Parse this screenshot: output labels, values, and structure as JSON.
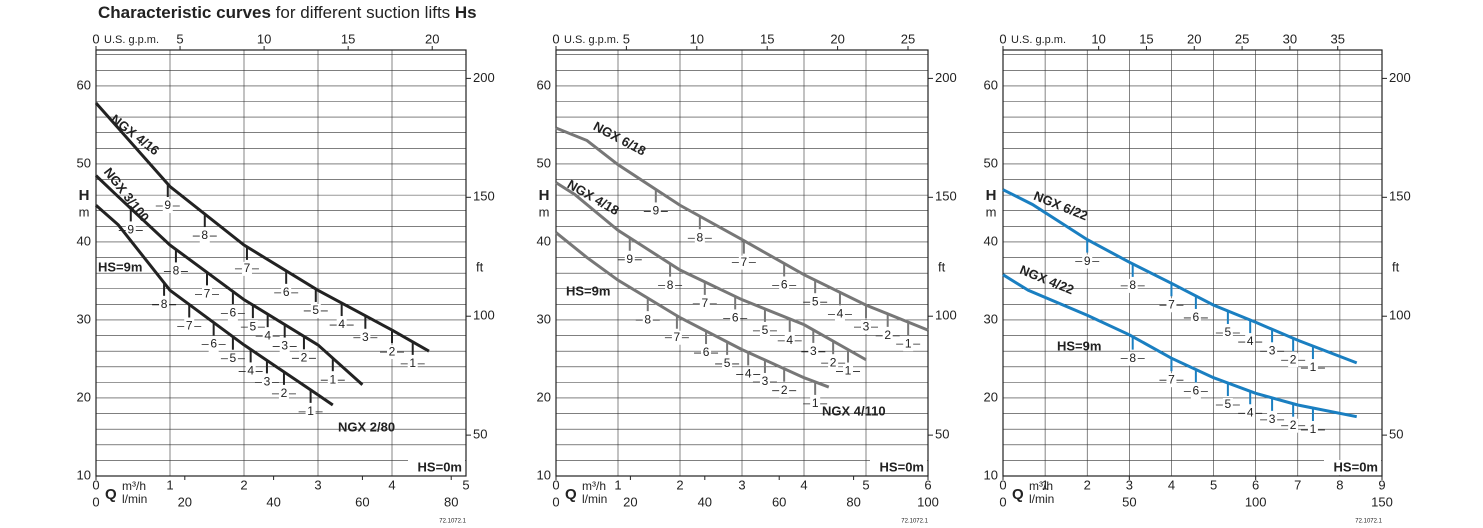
{
  "page_title": [
    "Characteristic curves",
    "for different suction lifts",
    "Hs"
  ],
  "chart_data": [
    {
      "type": "line",
      "color": "#222222",
      "xlim": [
        0,
        5
      ],
      "xticks": [
        0,
        1,
        2,
        3,
        4,
        5
      ],
      "x_unit": "m³/h",
      "lmin_lim": [
        0,
        83.33
      ],
      "lmin_ticks": [
        0,
        20,
        40,
        60,
        80
      ],
      "lmin_unit": "l/min",
      "gpm_lim": [
        0,
        22.01
      ],
      "gpm_ticks": [
        0,
        5,
        10,
        15,
        20
      ],
      "gpm_unit": "U.S. g.p.m.",
      "ylim": [
        10,
        64.6
      ],
      "yticks": [
        10,
        20,
        30,
        40,
        50,
        60
      ],
      "ygrid": [
        12,
        14,
        16,
        18,
        22,
        24,
        26,
        28,
        32,
        34,
        36,
        38,
        42,
        44,
        46,
        48,
        52,
        54,
        56,
        58,
        62,
        64
      ],
      "y_label": "H",
      "y_unit": "m",
      "y2lim": [
        32.81,
        211.94
      ],
      "y2ticks": [
        50,
        100,
        150,
        200
      ],
      "y2_unit": "ft",
      "x_label": "Q",
      "hs_max": "HS=9m",
      "hs_min": "HS=0m",
      "code": "72.1072.1",
      "series": [
        {
          "name": "NGX 4/16",
          "x": [
            0,
            0.3,
            1,
            2,
            3,
            4,
            4.5
          ],
          "values": [
            57.8,
            54.6,
            47.1,
            39.6,
            33.8,
            28.7,
            26
          ],
          "hs_x": [
            0.97,
            1.47,
            2.04,
            2.57,
            2.97,
            3.32,
            3.64,
            4.0,
            4.28
          ],
          "hs_values": [
            9,
            8,
            7,
            6,
            5,
            4,
            3,
            2,
            1
          ]
        },
        {
          "name": "NGX 3/100",
          "x": [
            0,
            0.3,
            1,
            2,
            3,
            3.6
          ],
          "values": [
            48.5,
            45.8,
            39.6,
            32.6,
            26.8,
            21.7
          ],
          "hs_x": [
            0.47,
            1.08,
            1.5,
            1.85,
            2.12,
            2.32,
            2.55,
            2.81,
            3.2
          ],
          "hs_values": [
            9,
            8,
            7,
            6,
            5,
            4,
            3,
            2,
            1
          ]
        },
        {
          "name": "NGX 2/80",
          "x": [
            0,
            0.3,
            1,
            2,
            3,
            3.2
          ],
          "values": [
            44.7,
            42.2,
            33.8,
            26.8,
            20.4,
            19.1
          ],
          "hs_x": [
            0.92,
            1.26,
            1.59,
            1.85,
            2.09,
            2.31,
            2.54,
            2.9
          ],
          "hs_values": [
            8,
            7,
            6,
            5,
            4,
            3,
            2,
            1
          ]
        }
      ]
    },
    {
      "type": "line",
      "color": "#777777",
      "xlim": [
        0,
        6
      ],
      "xticks": [
        0,
        1,
        2,
        3,
        4,
        5,
        6
      ],
      "x_unit": "m³/h",
      "lmin_lim": [
        0,
        100
      ],
      "lmin_ticks": [
        0,
        20,
        40,
        60,
        80,
        100
      ],
      "lmin_unit": "l/min",
      "gpm_lim": [
        0,
        26.42
      ],
      "gpm_ticks": [
        0,
        5,
        10,
        15,
        20,
        25
      ],
      "gpm_unit": "U.S. g.p.m.",
      "ylim": [
        10,
        64.6
      ],
      "yticks": [
        10,
        20,
        30,
        40,
        50,
        60
      ],
      "ygrid": [
        12,
        14,
        16,
        18,
        22,
        24,
        26,
        28,
        32,
        34,
        36,
        38,
        42,
        44,
        46,
        48,
        52,
        54,
        56,
        58,
        62,
        64
      ],
      "y_label": "H",
      "y_unit": "m",
      "y2lim": [
        32.81,
        211.94
      ],
      "y2ticks": [
        50,
        100,
        150,
        200
      ],
      "y2_unit": "ft",
      "x_label": "Q",
      "hs_max": "HS=9m",
      "hs_min": "HS=0m",
      "code": "72.1072.1",
      "series": [
        {
          "name": "NGX 6/18",
          "x": [
            0,
            0.5,
            1,
            2,
            3,
            4,
            5,
            6
          ],
          "values": [
            54.6,
            53,
            49.9,
            44.7,
            40.3,
            35.8,
            31.9,
            28.7
          ],
          "hs_x": [
            1.61,
            2.32,
            3.03,
            3.68,
            4.18,
            4.58,
            5.0,
            5.35,
            5.68
          ],
          "hs_values": [
            9,
            8,
            7,
            6,
            5,
            4,
            3,
            2,
            1
          ]
        },
        {
          "name": "NGX 4/18",
          "x": [
            0,
            0.3,
            1,
            2,
            3,
            4,
            5
          ],
          "values": [
            47.6,
            46.1,
            41.5,
            36.4,
            32.6,
            29.4,
            24.9
          ],
          "hs_x": [
            1.19,
            1.84,
            2.4,
            2.89,
            3.37,
            3.77,
            4.15,
            4.47,
            4.71
          ],
          "hs_values": [
            9,
            8,
            7,
            6,
            5,
            4,
            3,
            2,
            1
          ]
        },
        {
          "name": "NGX 4/110",
          "x": [
            0,
            0.5,
            1,
            2,
            3,
            4,
            4.4
          ],
          "values": [
            41.2,
            38,
            35.1,
            30.3,
            26.2,
            22.6,
            21.4
          ],
          "hs_x": [
            1.48,
            1.95,
            2.42,
            2.76,
            3.1,
            3.37,
            3.68,
            4.18
          ],
          "hs_values": [
            8,
            7,
            6,
            5,
            4,
            3,
            2,
            1
          ]
        }
      ]
    },
    {
      "type": "line",
      "color": "#1a7fc1",
      "xlim": [
        0,
        9
      ],
      "xticks": [
        0,
        1,
        2,
        3,
        4,
        5,
        6,
        7,
        8,
        9
      ],
      "x_unit": "m³/h",
      "lmin_lim": [
        0,
        150
      ],
      "lmin_ticks": [
        0,
        50,
        100,
        150
      ],
      "lmin_unit": "l/min",
      "gpm_lim": [
        0,
        39.63
      ],
      "gpm_ticks": [
        0,
        10,
        15,
        20,
        25,
        30,
        35
      ],
      "gpm_unit": "U.S. g.p.m.",
      "ylim": [
        10,
        64.6
      ],
      "yticks": [
        10,
        20,
        30,
        40,
        50,
        60
      ],
      "ygrid": [
        12,
        14,
        16,
        18,
        22,
        24,
        26,
        28,
        32,
        34,
        36,
        38,
        42,
        44,
        46,
        48,
        52,
        54,
        56,
        58,
        62,
        64
      ],
      "y_label": "H",
      "y_unit": "m",
      "y2lim": [
        32.81,
        211.94
      ],
      "y2ticks": [
        50,
        100,
        150,
        200
      ],
      "y2_unit": "ft",
      "x_label": "Q",
      "hs_max": "HS=9m",
      "hs_min": "HS=0m",
      "code": "72.1072.1",
      "series": [
        {
          "name": "NGX 6/22",
          "x": [
            0,
            0.7,
            2,
            3,
            4,
            5,
            6,
            7,
            8.4
          ],
          "values": [
            46.7,
            44.8,
            40.3,
            37.4,
            34.7,
            31.9,
            29.7,
            27.4,
            24.5
          ],
          "hs_x": [
            2.0,
            3.08,
            4.0,
            4.58,
            5.34,
            5.87,
            6.39,
            6.89,
            7.36
          ],
          "hs_values": [
            9,
            8,
            7,
            6,
            5,
            4,
            3,
            2,
            1
          ]
        },
        {
          "name": "NGX 4/22",
          "x": [
            0,
            0.6,
            2,
            3,
            4,
            5,
            6,
            7,
            8.4
          ],
          "values": [
            35.8,
            33.8,
            30.6,
            28.1,
            25.1,
            22.6,
            20.6,
            19.1,
            17.6
          ],
          "hs_x": [
            3.08,
            4.0,
            4.58,
            5.34,
            5.87,
            6.39,
            6.89,
            7.36
          ],
          "hs_values": [
            8,
            7,
            6,
            5,
            4,
            3,
            2,
            1
          ]
        }
      ]
    }
  ]
}
